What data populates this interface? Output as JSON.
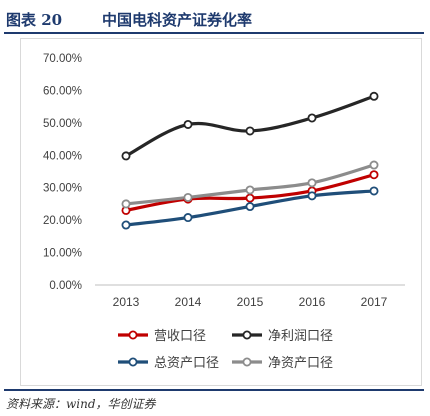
{
  "figure": {
    "title_prefix": "图表 20",
    "title_text": "中国电科资产证券化率",
    "source": "资料来源：wind，华创证券"
  },
  "chart_data": {
    "type": "line",
    "x": [
      "2013",
      "2014",
      "2015",
      "2016",
      "2017"
    ],
    "y_ticks": [
      "0.00%",
      "10.00%",
      "20.00%",
      "30.00%",
      "40.00%",
      "50.00%",
      "60.00%",
      "70.00%"
    ],
    "ylim": [
      0,
      70
    ],
    "grid": false,
    "legend_position": "bottom",
    "series": [
      {
        "name": "营收口径",
        "color": "#c00000",
        "values": [
          23.0,
          26.5,
          26.8,
          29.0,
          34.0
        ]
      },
      {
        "name": "净利润口径",
        "color": "#262626",
        "values": [
          39.8,
          49.5,
          47.5,
          51.5,
          58.2
        ]
      },
      {
        "name": "总资产口径",
        "color": "#1f4e79",
        "values": [
          18.5,
          20.8,
          24.2,
          27.5,
          29.0
        ]
      },
      {
        "name": "净资产口径",
        "color": "#8c8c8c",
        "values": [
          25.0,
          27.0,
          29.3,
          31.5,
          37.0
        ]
      }
    ]
  }
}
